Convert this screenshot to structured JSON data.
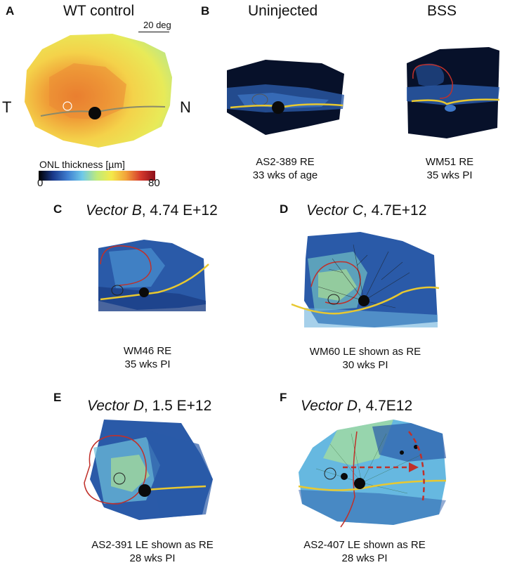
{
  "panels": {
    "A": {
      "label": "A",
      "title": "WT control",
      "scalebar": "20 deg",
      "side_left": "T",
      "side_right": "N",
      "colorbar": {
        "title": "ONL thickness [µm]",
        "min": "0",
        "max": "80",
        "colors": [
          "#000000",
          "#1a3a8c",
          "#3f7fd1",
          "#6fc9e8",
          "#bfeb7a",
          "#f4e94a",
          "#f2a23a",
          "#d63a2c",
          "#8c0e1a"
        ]
      }
    },
    "B": {
      "label": "B",
      "subpanels": [
        {
          "title": "Uninjected",
          "caption_line1": "AS2-389 RE",
          "caption_line2": "33 wks of age"
        },
        {
          "title": "BSS",
          "caption_line1": "WM51 RE",
          "caption_line2": "35 wks PI"
        }
      ]
    },
    "C": {
      "label": "C",
      "title_vector": "Vector B",
      "title_dose": ", 4.74 E+12",
      "caption_line1": "WM46 RE",
      "caption_line2": "35 wks PI"
    },
    "D": {
      "label": "D",
      "title_vector": "Vector C",
      "title_dose": ", 4.7E+12",
      "caption_line1": "WM60 LE shown as RE",
      "caption_line2": "30 wks PI"
    },
    "E": {
      "label": "E",
      "title_vector": "Vector D",
      "title_dose": ", 1.5 E+12",
      "caption_line1": "AS2-391 LE shown as RE",
      "caption_line2": "28 wks PI"
    },
    "F": {
      "label": "F",
      "title_vector": "Vector D",
      "title_dose": ", 4.7E12",
      "caption_line1": "AS2-407 LE shown as RE",
      "caption_line2": "28 wks PI"
    }
  },
  "colors": {
    "map_dark": "#07112a",
    "map_blue": "#2a5aa8",
    "map_light": "#66b8e0",
    "lesion_outline": "#c0302a",
    "vessel_line": "#e8c830",
    "onh_disc": "#0a0a0a",
    "arrow": "#c0302a"
  }
}
